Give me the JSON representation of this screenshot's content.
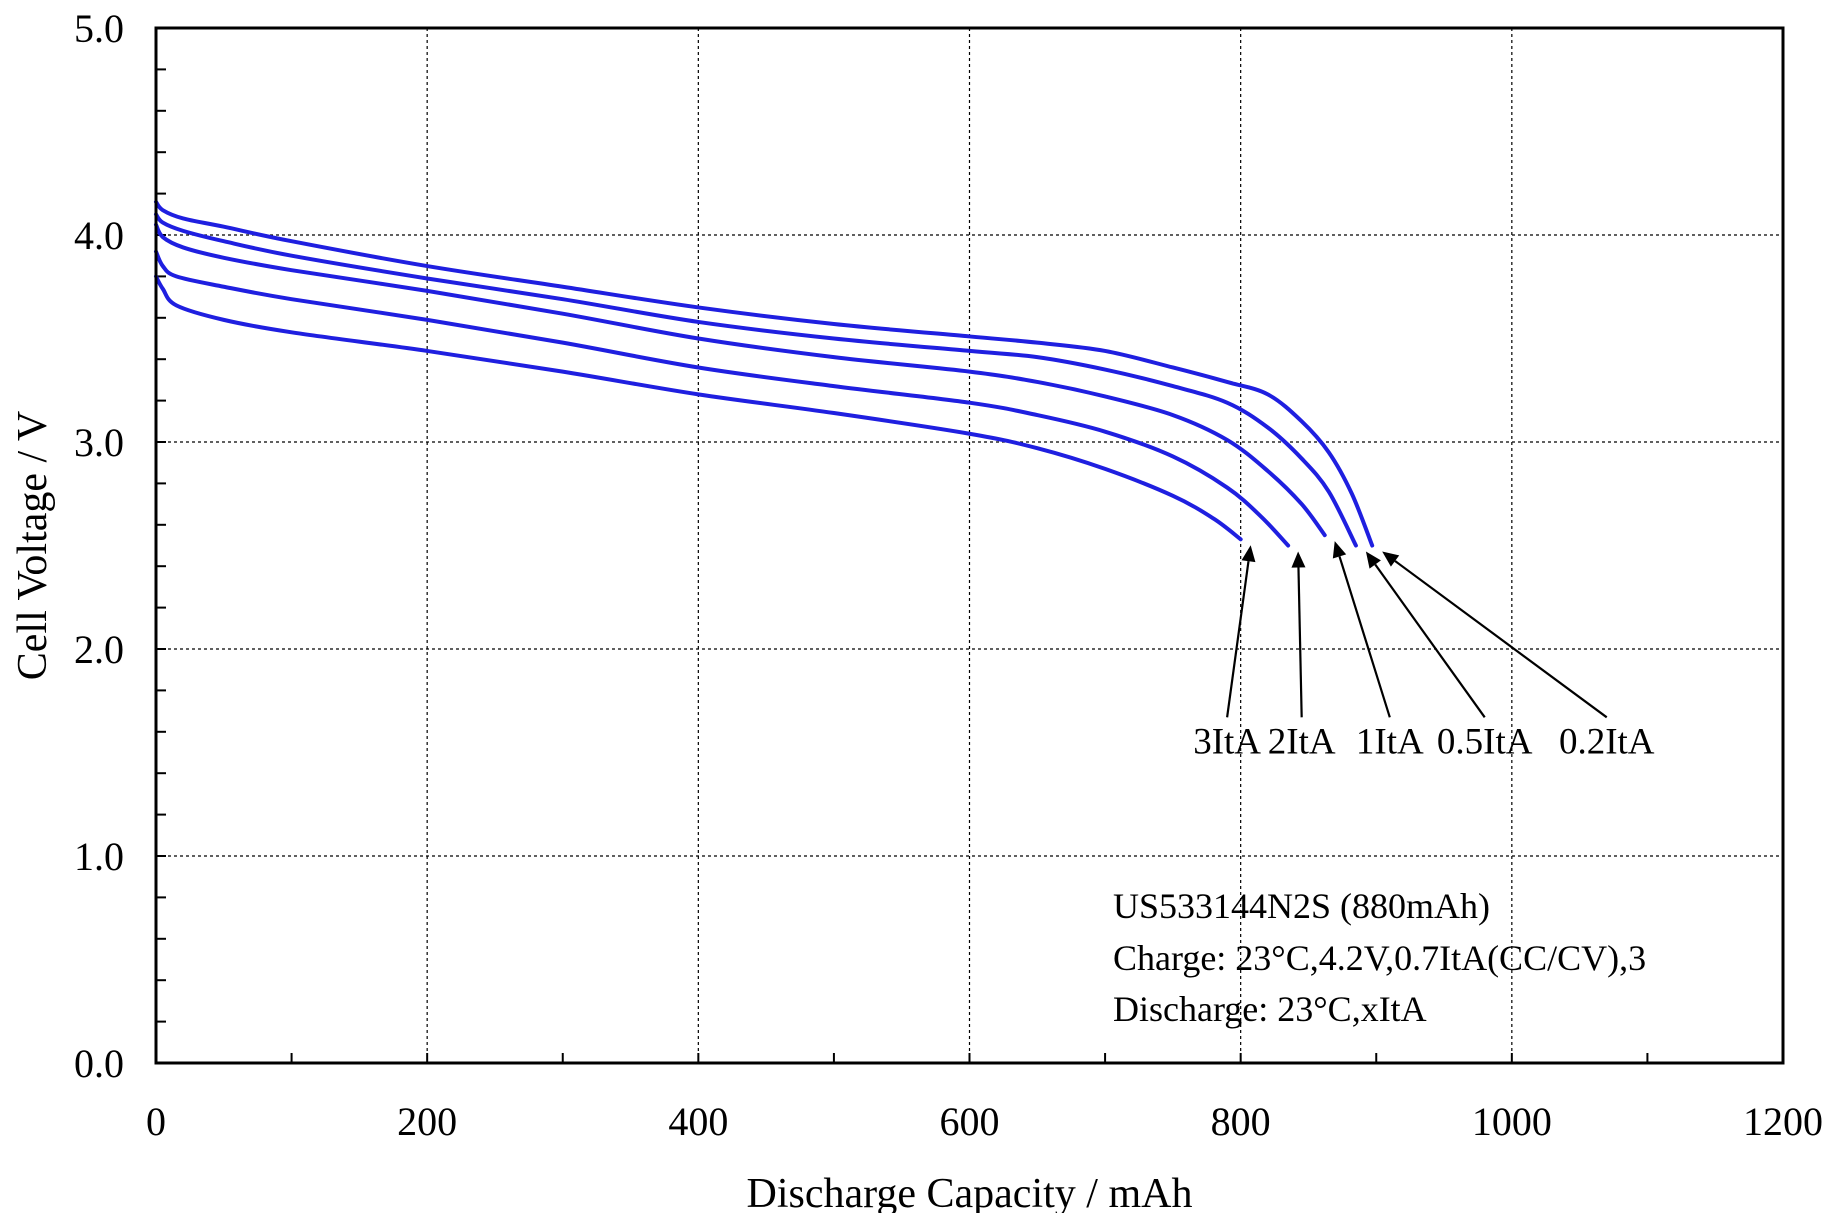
{
  "chart_data": {
    "type": "line",
    "title": "",
    "xlabel": "Discharge Capacity / mAh",
    "ylabel": "Cell Voltage / V",
    "xlim": [
      0,
      1200
    ],
    "ylim": [
      0,
      5
    ],
    "x_ticks": [
      0,
      200,
      400,
      600,
      800,
      1000,
      1200
    ],
    "x_tick_labels": [
      "0",
      "200",
      "400",
      "600",
      "800",
      "1000",
      "1200"
    ],
    "y_ticks": [
      0,
      1,
      2,
      3,
      4,
      5
    ],
    "y_tick_labels": [
      "0.0",
      "1.0",
      "2.0",
      "3.0",
      "4.0",
      "5.0"
    ],
    "grid": true,
    "legend": "none",
    "line_color": "#1f1fe0",
    "annotations": [
      "US533144N2S (880mAh)",
      "Charge: 23°C,4.2V,0.7ItA(CC/CV),3",
      "Discharge: 23°C,xItA"
    ],
    "series": [
      {
        "name": "3ItA",
        "label_x": 790,
        "label_y": 1.67,
        "points": [
          [
            0,
            3.8
          ],
          [
            5,
            3.74
          ],
          [
            15,
            3.66
          ],
          [
            50,
            3.59
          ],
          [
            100,
            3.53
          ],
          [
            200,
            3.44
          ],
          [
            300,
            3.34
          ],
          [
            400,
            3.23
          ],
          [
            500,
            3.14
          ],
          [
            600,
            3.04
          ],
          [
            650,
            2.97
          ],
          [
            700,
            2.87
          ],
          [
            750,
            2.74
          ],
          [
            780,
            2.63
          ],
          [
            800,
            2.53
          ]
        ]
      },
      {
        "name": "2ItA",
        "label_x": 845,
        "label_y": 1.67,
        "points": [
          [
            0,
            3.92
          ],
          [
            5,
            3.85
          ],
          [
            15,
            3.8
          ],
          [
            50,
            3.75
          ],
          [
            100,
            3.69
          ],
          [
            200,
            3.59
          ],
          [
            300,
            3.48
          ],
          [
            400,
            3.36
          ],
          [
            500,
            3.27
          ],
          [
            600,
            3.19
          ],
          [
            650,
            3.13
          ],
          [
            700,
            3.05
          ],
          [
            750,
            2.93
          ],
          [
            790,
            2.78
          ],
          [
            815,
            2.64
          ],
          [
            835,
            2.5
          ]
        ]
      },
      {
        "name": "1ItA",
        "label_x": 910,
        "label_y": 1.67,
        "points": [
          [
            0,
            4.05
          ],
          [
            5,
            3.99
          ],
          [
            20,
            3.94
          ],
          [
            50,
            3.89
          ],
          [
            100,
            3.83
          ],
          [
            200,
            3.73
          ],
          [
            300,
            3.62
          ],
          [
            400,
            3.5
          ],
          [
            500,
            3.41
          ],
          [
            600,
            3.34
          ],
          [
            650,
            3.29
          ],
          [
            700,
            3.22
          ],
          [
            750,
            3.13
          ],
          [
            790,
            3.01
          ],
          [
            820,
            2.86
          ],
          [
            845,
            2.7
          ],
          [
            862,
            2.55
          ]
        ]
      },
      {
        "name": "0.5ItA",
        "label_x": 980,
        "label_y": 1.67,
        "points": [
          [
            0,
            4.1
          ],
          [
            5,
            4.06
          ],
          [
            20,
            4.02
          ],
          [
            50,
            3.97
          ],
          [
            100,
            3.9
          ],
          [
            200,
            3.79
          ],
          [
            300,
            3.69
          ],
          [
            400,
            3.58
          ],
          [
            500,
            3.5
          ],
          [
            600,
            3.44
          ],
          [
            650,
            3.41
          ],
          [
            700,
            3.35
          ],
          [
            750,
            3.27
          ],
          [
            790,
            3.19
          ],
          [
            820,
            3.07
          ],
          [
            845,
            2.92
          ],
          [
            865,
            2.76
          ],
          [
            885,
            2.5
          ]
        ]
      },
      {
        "name": "0.2ItA",
        "label_x": 1070,
        "label_y": 1.67,
        "points": [
          [
            0,
            4.16
          ],
          [
            5,
            4.12
          ],
          [
            20,
            4.08
          ],
          [
            50,
            4.04
          ],
          [
            100,
            3.97
          ],
          [
            200,
            3.85
          ],
          [
            300,
            3.75
          ],
          [
            400,
            3.65
          ],
          [
            500,
            3.57
          ],
          [
            600,
            3.51
          ],
          [
            650,
            3.48
          ],
          [
            700,
            3.44
          ],
          [
            750,
            3.36
          ],
          [
            790,
            3.29
          ],
          [
            820,
            3.23
          ],
          [
            845,
            3.1
          ],
          [
            865,
            2.95
          ],
          [
            882,
            2.75
          ],
          [
            897,
            2.5
          ]
        ]
      }
    ]
  }
}
